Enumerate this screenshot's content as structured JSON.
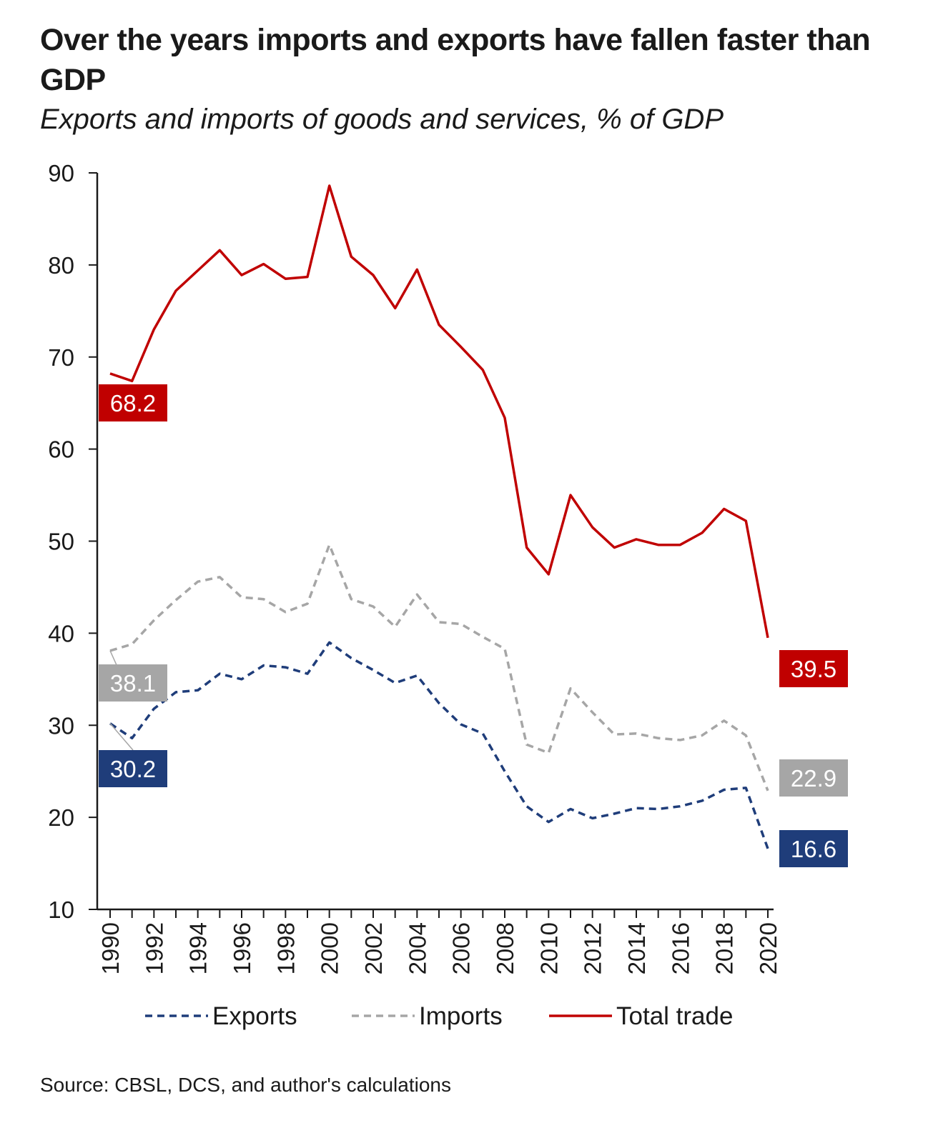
{
  "title": "Over the years imports and exports have fallen faster than GDP",
  "subtitle": "Exports and imports of goods and services, % of GDP",
  "source": "Source: CBSL, DCS, and author's calculations",
  "chart_data": {
    "type": "line",
    "x": [
      1990,
      1991,
      1992,
      1993,
      1994,
      1995,
      1996,
      1997,
      1998,
      1999,
      2000,
      2001,
      2002,
      2003,
      2004,
      2005,
      2006,
      2007,
      2008,
      2009,
      2010,
      2011,
      2012,
      2013,
      2014,
      2015,
      2016,
      2017,
      2018,
      2019,
      2020
    ],
    "xticks": [
      "1990",
      "1992",
      "1994",
      "1996",
      "1998",
      "2000",
      "2002",
      "2004",
      "2006",
      "2008",
      "2010",
      "2012",
      "2014",
      "2016",
      "2018",
      "2020"
    ],
    "yticks": [
      "10",
      "20",
      "30",
      "40",
      "50",
      "60",
      "70",
      "80",
      "90"
    ],
    "ylim": [
      10,
      90
    ],
    "xlim": [
      1990,
      2020
    ],
    "grid": false,
    "legend": "bottom",
    "series": [
      {
        "name": "Exports",
        "color": "#1f3d7a",
        "style": "dashed",
        "values": [
          30.2,
          28.6,
          31.8,
          33.6,
          33.8,
          35.6,
          35.0,
          36.5,
          36.3,
          35.6,
          39.0,
          37.3,
          36.0,
          34.6,
          35.4,
          32.4,
          30.1,
          29.1,
          25.0,
          21.2,
          19.5,
          20.9,
          19.9,
          20.4,
          21.0,
          20.9,
          21.2,
          21.8,
          23.0,
          23.2,
          16.6
        ],
        "end_labels": {
          "start": "30.2",
          "end": "16.6"
        }
      },
      {
        "name": "Imports",
        "color": "#a6a6a6",
        "style": "dashed",
        "values": [
          38.1,
          38.8,
          41.4,
          43.6,
          45.6,
          46.1,
          43.9,
          43.7,
          42.3,
          43.2,
          49.6,
          43.7,
          42.9,
          40.7,
          44.2,
          41.2,
          41.0,
          39.6,
          38.3,
          27.9,
          27.0,
          34.0,
          31.4,
          29.0,
          29.1,
          28.6,
          28.4,
          28.9,
          30.5,
          28.9,
          22.9
        ],
        "end_labels": {
          "start": "38.1",
          "end": "22.9"
        }
      },
      {
        "name": "Total trade",
        "color": "#c00000",
        "style": "solid",
        "values": [
          68.2,
          67.4,
          73.0,
          77.2,
          79.4,
          81.6,
          78.9,
          80.1,
          78.5,
          78.7,
          88.6,
          80.9,
          78.9,
          75.3,
          79.5,
          73.5,
          71.1,
          68.6,
          63.4,
          49.3,
          46.4,
          55.0,
          51.5,
          49.3,
          50.2,
          49.6,
          49.6,
          50.9,
          53.5,
          52.2,
          39.5
        ],
        "end_labels": {
          "start": "68.2",
          "end": "39.5"
        }
      }
    ]
  }
}
